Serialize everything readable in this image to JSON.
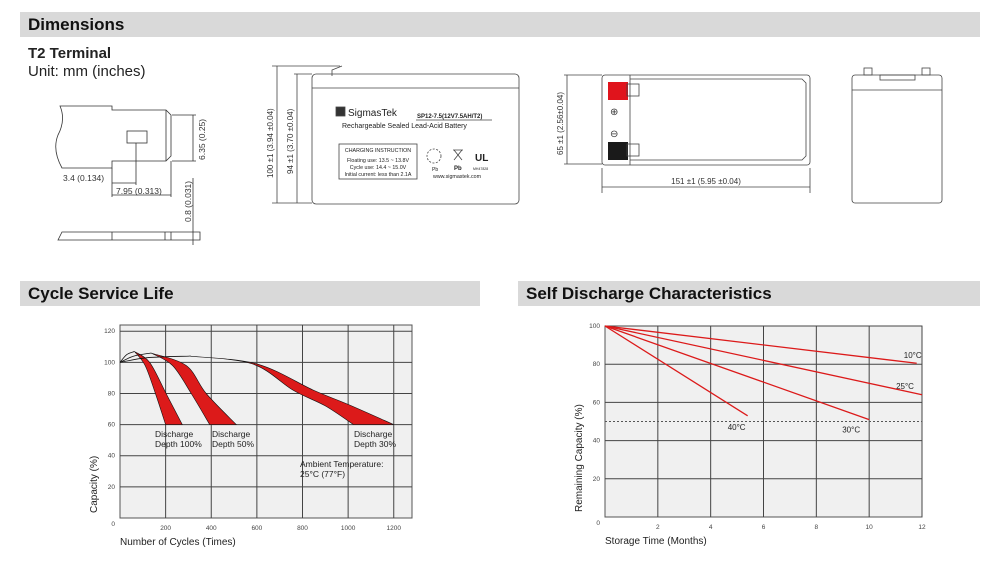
{
  "sections": {
    "dimensions": "Dimensions",
    "cycle": "Cycle Service Life",
    "self_discharge": "Self Discharge Characteristics"
  },
  "terminal": {
    "title": "T2 Terminal",
    "unit": "Unit: mm (inches)",
    "dim_height": "6.35 (0.25)",
    "dim_a": "3.4 (0.134)",
    "dim_b": "7.95 (0.313)",
    "dim_thick": "0.8 (0.031)"
  },
  "front_view": {
    "dim_total_height": "100 ±1 (3.94 ±0.04)",
    "dim_case_height": "94 ±1 (3.70 ±0.04)",
    "brand": "SigmasTek",
    "model": "SP12-7.5(12V7.5AH/T2)",
    "subtitle": "Rechargeable Sealed Lead-Acid Battery",
    "charging_title": "CHARGING INSTRUCTION",
    "floating": "Floating use: 13.5 ~ 13.8V",
    "cycle_use": "Cycle use: 14.4 ~ 15.0V",
    "initial_current": "Initial current: less than 2.1A",
    "website": "www.sigmastek.com",
    "pb1": "Pb",
    "pb2": "Pb",
    "ul_code": "MH47828"
  },
  "top_view": {
    "dim_width": "65 ±1 (2.56±0.04)",
    "dim_length": "151 ±1 (5.95 ±0.04)",
    "plus": "⊕",
    "minus": "⊖",
    "positive_color": "#e0141c",
    "negative_color": "#1a1a1a"
  },
  "chart_data": [
    {
      "type": "area",
      "xlabel": "Number of Cycles (Times)",
      "ylabel": "Capacity (%)",
      "xlim": [
        0,
        1280
      ],
      "ylim": [
        0,
        124
      ],
      "grid": true,
      "xticks": [
        200,
        400,
        600,
        800,
        1000,
        1200
      ],
      "yticks": [
        0,
        20,
        40,
        60,
        80,
        100,
        120
      ],
      "band_color": "#dc1a1a",
      "series": [
        {
          "name": "Discharge Depth 100%",
          "rise": [
            [
              0,
              100
            ],
            [
              30,
              105
            ],
            [
              63,
              107
            ]
          ],
          "inner": [
            [
              63,
              107
            ],
            [
              110,
              98
            ],
            [
              155,
              80
            ],
            [
              200,
              60
            ]
          ],
          "outer": [
            [
              63,
              107
            ],
            [
              130,
              100
            ],
            [
              202,
              80
            ],
            [
              273,
              60
            ]
          ]
        },
        {
          "name": "Discharge Depth 50%",
          "rise": [
            [
              0,
              100
            ],
            [
              60,
              104
            ],
            [
              136,
              106
            ]
          ],
          "inner": [
            [
              136,
              106
            ],
            [
              230,
              98
            ],
            [
              312,
              80
            ],
            [
              393,
              60
            ]
          ],
          "outer": [
            [
              136,
              106
            ],
            [
              290,
              98
            ],
            [
              378,
              80
            ],
            [
              510,
              60
            ]
          ]
        },
        {
          "name": "Discharge Depth 30%",
          "rise": [
            [
              0,
              100
            ],
            [
              120,
              103
            ],
            [
              305,
              104
            ]
          ],
          "inner": [
            [
              305,
              104
            ],
            [
              580,
              99
            ],
            [
              760,
              82
            ],
            [
              900,
              72
            ],
            [
              1023,
              60
            ]
          ],
          "outer": [
            [
              305,
              104
            ],
            [
              600,
              99
            ],
            [
              850,
              82
            ],
            [
              1000,
              73
            ],
            [
              1200,
              60
            ]
          ]
        }
      ],
      "labels": [
        {
          "l1": "Discharge",
          "l2": "Depth 100%"
        },
        {
          "l1": "Discharge",
          "l2": "Depth 50%"
        },
        {
          "l1": "Discharge",
          "l2": "Depth 30%"
        }
      ],
      "annotation": {
        "l1": "Ambient Temperature:",
        "l2": "25°C (77°F)"
      }
    },
    {
      "type": "line",
      "xlabel": "Storage Time (Months)",
      "ylabel": "Remaining Capacity (%)",
      "xlim": [
        0,
        12
      ],
      "ylim": [
        0,
        100
      ],
      "grid": true,
      "xticks": [
        2,
        4,
        6,
        8,
        10,
        12
      ],
      "yticks": [
        0,
        20,
        40,
        60,
        80,
        100
      ],
      "line_color": "#dc1a1a",
      "reference_line": 50,
      "series": [
        {
          "name": "10°C",
          "points": [
            [
              0,
              100
            ],
            [
              11.8,
              80.5
            ]
          ]
        },
        {
          "name": "25°C",
          "points": [
            [
              0,
              100
            ],
            [
              12,
              64
            ]
          ]
        },
        {
          "name": "30°C",
          "points": [
            [
              0,
              100
            ],
            [
              10,
              51
            ]
          ]
        },
        {
          "name": "40°C",
          "points": [
            [
              0,
              100
            ],
            [
              5.4,
              53
            ]
          ]
        }
      ]
    }
  ]
}
